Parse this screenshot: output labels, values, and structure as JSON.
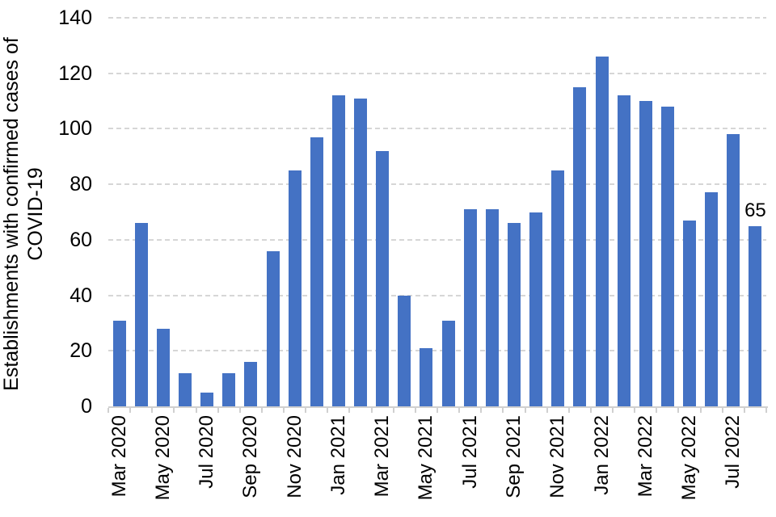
{
  "chart_data": {
    "type": "bar",
    "title": "",
    "ylabel_lines": [
      "Establishments with confirmed cases of",
      "COVID-19"
    ],
    "xlabel": "",
    "categories": [
      "Mar 2020",
      "Apr 2020",
      "May 2020",
      "Jun 2020",
      "Jul 2020",
      "Aug 2020",
      "Sep 2020",
      "Oct 2020",
      "Nov 2020",
      "Dec 2020",
      "Jan 2021",
      "Feb 2021",
      "Mar 2021",
      "Apr 2021",
      "May 2021",
      "Jun 2021",
      "Jul 2021",
      "Aug 2021",
      "Sep 2021",
      "Oct 2021",
      "Nov 2021",
      "Dec 2021",
      "Jan 2022",
      "Feb 2022",
      "Mar 2022",
      "Apr 2022",
      "May 2022",
      "Jun 2022",
      "Jul 2022",
      "Aug 2022"
    ],
    "values": [
      31,
      66,
      28,
      12,
      5,
      12,
      16,
      56,
      85,
      97,
      112,
      111,
      92,
      40,
      21,
      31,
      71,
      71,
      66,
      70,
      85,
      115,
      126,
      112,
      110,
      108,
      67,
      77,
      98,
      65
    ],
    "x_tick_labels": [
      "Mar 2020",
      "May 2020",
      "Jul 2020",
      "Sep 2020",
      "Nov 2020",
      "Jan 2021",
      "Mar 2021",
      "May 2021",
      "Jul 2021",
      "Sep 2021",
      "Nov 2021",
      "Jan 2022",
      "Mar 2022",
      "May 2022",
      "Jul 2022"
    ],
    "x_tick_step": 2,
    "y_ticks": [
      0,
      20,
      40,
      60,
      80,
      100,
      120,
      140
    ],
    "ylim": [
      0,
      140
    ],
    "grid": "horizontal-dashed",
    "legend": "none",
    "data_label": {
      "index": 29,
      "text": "65"
    },
    "bar_color": "#4472c4",
    "gridline_color": "#d6d6d6",
    "axis_color": "#d0d0d0",
    "text_color": "#000000"
  }
}
